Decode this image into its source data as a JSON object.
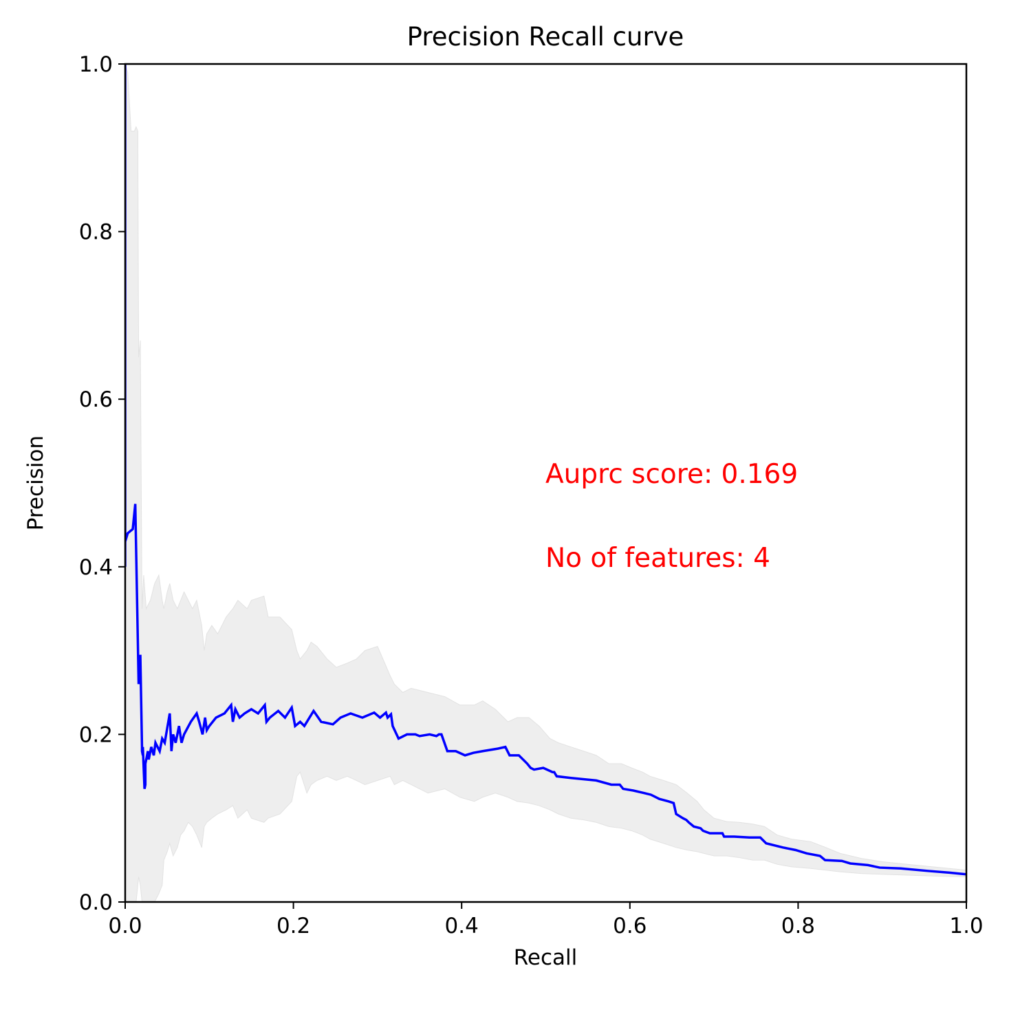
{
  "chart_data": {
    "type": "line",
    "title": "Precision Recall curve",
    "xlabel": "Recall",
    "ylabel": "Precision",
    "xlim": [
      0,
      1
    ],
    "ylim": [
      0,
      1
    ],
    "xticks": [
      "0.0",
      "0.2",
      "0.4",
      "0.6",
      "0.8",
      "1.0"
    ],
    "yticks": [
      "0.0",
      "0.2",
      "0.4",
      "0.6",
      "0.8",
      "1.0"
    ],
    "grid": false,
    "colors": {
      "line": "#0000ff",
      "band": "#eeeeee",
      "band_edge": "#e2e2e2",
      "annotation": "#ff0000"
    },
    "annotations": [
      "Auprc score: 0.169",
      "No of features: 4"
    ],
    "series": [
      {
        "x": [
          0.0,
          0.0,
          0.0,
          0.003,
          0.009,
          0.012,
          0.016,
          0.016,
          0.018,
          0.018,
          0.02,
          0.02,
          0.021,
          0.021,
          0.023,
          0.024,
          0.024,
          0.027,
          0.028,
          0.031,
          0.034,
          0.036,
          0.041,
          0.044,
          0.047,
          0.053,
          0.055,
          0.057,
          0.06,
          0.064,
          0.067,
          0.07,
          0.078,
          0.085,
          0.088,
          0.092,
          0.095,
          0.097,
          0.1,
          0.108,
          0.118,
          0.126,
          0.128,
          0.131,
          0.136,
          0.142,
          0.15,
          0.158,
          0.166,
          0.168,
          0.172,
          0.182,
          0.19,
          0.198,
          0.202,
          0.208,
          0.211,
          0.213,
          0.224,
          0.233,
          0.238,
          0.247,
          0.256,
          0.268,
          0.282,
          0.296,
          0.303,
          0.31,
          0.312,
          0.316,
          0.318,
          0.325,
          0.335,
          0.345,
          0.35,
          0.362,
          0.37,
          0.373,
          0.376,
          0.383,
          0.393,
          0.404,
          0.414,
          0.425,
          0.443,
          0.452,
          0.457,
          0.468,
          0.478,
          0.482,
          0.486,
          0.497,
          0.508,
          0.51,
          0.513,
          0.53,
          0.56,
          0.578,
          0.588,
          0.592,
          0.604,
          0.617,
          0.625,
          0.635,
          0.646,
          0.652,
          0.655,
          0.663,
          0.667,
          0.67,
          0.676,
          0.684,
          0.687,
          0.695,
          0.71,
          0.712,
          0.724,
          0.742,
          0.755,
          0.762,
          0.782,
          0.797,
          0.81,
          0.826,
          0.832,
          0.852,
          0.862,
          0.883,
          0.897,
          0.922,
          0.955,
          0.98,
          1.0
        ],
        "y": [
          0.4,
          1.0,
          0.43,
          0.44,
          0.445,
          0.475,
          0.26,
          0.28,
          0.26,
          0.295,
          0.185,
          0.18,
          0.175,
          0.185,
          0.135,
          0.14,
          0.165,
          0.18,
          0.17,
          0.185,
          0.175,
          0.19,
          0.18,
          0.195,
          0.19,
          0.225,
          0.18,
          0.2,
          0.19,
          0.21,
          0.19,
          0.2,
          0.215,
          0.225,
          0.215,
          0.2,
          0.22,
          0.205,
          0.21,
          0.22,
          0.225,
          0.235,
          0.215,
          0.23,
          0.22,
          0.225,
          0.23,
          0.225,
          0.235,
          0.215,
          0.22,
          0.228,
          0.22,
          0.232,
          0.21,
          0.215,
          0.212,
          0.21,
          0.228,
          0.215,
          0.214,
          0.212,
          0.22,
          0.225,
          0.22,
          0.226,
          0.22,
          0.226,
          0.22,
          0.224,
          0.21,
          0.195,
          0.2,
          0.2,
          0.198,
          0.2,
          0.198,
          0.2,
          0.2,
          0.18,
          0.18,
          0.175,
          0.178,
          0.18,
          0.183,
          0.185,
          0.175,
          0.175,
          0.165,
          0.16,
          0.158,
          0.16,
          0.155,
          0.155,
          0.15,
          0.148,
          0.145,
          0.14,
          0.14,
          0.135,
          0.133,
          0.13,
          0.128,
          0.123,
          0.12,
          0.118,
          0.105,
          0.1,
          0.098,
          0.095,
          0.09,
          0.088,
          0.085,
          0.082,
          0.082,
          0.078,
          0.078,
          0.077,
          0.077,
          0.07,
          0.065,
          0.062,
          0.058,
          0.055,
          0.05,
          0.049,
          0.046,
          0.044,
          0.041,
          0.04,
          0.037,
          0.035,
          0.033
        ]
      }
    ],
    "band": {
      "x": [
        0.0,
        0.003,
        0.007,
        0.011,
        0.013,
        0.015,
        0.016,
        0.018,
        0.02,
        0.022,
        0.025,
        0.03,
        0.035,
        0.04,
        0.044,
        0.046,
        0.05,
        0.053,
        0.057,
        0.062,
        0.066,
        0.07,
        0.075,
        0.08,
        0.085,
        0.091,
        0.094,
        0.097,
        0.103,
        0.11,
        0.12,
        0.128,
        0.134,
        0.145,
        0.15,
        0.165,
        0.17,
        0.184,
        0.198,
        0.204,
        0.208,
        0.216,
        0.221,
        0.228,
        0.24,
        0.251,
        0.264,
        0.275,
        0.285,
        0.3,
        0.315,
        0.32,
        0.33,
        0.34,
        0.36,
        0.38,
        0.398,
        0.415,
        0.425,
        0.44,
        0.455,
        0.466,
        0.48,
        0.492,
        0.505,
        0.515,
        0.53,
        0.545,
        0.56,
        0.575,
        0.59,
        0.602,
        0.615,
        0.624,
        0.64,
        0.655,
        0.668,
        0.68,
        0.688,
        0.7,
        0.715,
        0.73,
        0.746,
        0.76,
        0.775,
        0.792,
        0.815,
        0.833,
        0.85,
        0.875,
        0.9,
        0.93,
        0.96,
        1.0
      ],
      "upper": [
        1.0,
        0.99,
        0.92,
        0.92,
        0.925,
        0.92,
        0.65,
        0.67,
        0.35,
        0.39,
        0.35,
        0.36,
        0.38,
        0.39,
        0.36,
        0.35,
        0.37,
        0.38,
        0.36,
        0.35,
        0.36,
        0.37,
        0.36,
        0.35,
        0.36,
        0.33,
        0.3,
        0.32,
        0.33,
        0.32,
        0.34,
        0.35,
        0.36,
        0.35,
        0.36,
        0.365,
        0.34,
        0.34,
        0.325,
        0.3,
        0.29,
        0.3,
        0.31,
        0.305,
        0.29,
        0.28,
        0.285,
        0.29,
        0.3,
        0.305,
        0.27,
        0.26,
        0.25,
        0.255,
        0.25,
        0.245,
        0.235,
        0.235,
        0.24,
        0.23,
        0.215,
        0.22,
        0.22,
        0.21,
        0.195,
        0.19,
        0.185,
        0.18,
        0.175,
        0.165,
        0.165,
        0.16,
        0.155,
        0.15,
        0.145,
        0.14,
        0.13,
        0.12,
        0.11,
        0.1,
        0.096,
        0.095,
        0.093,
        0.09,
        0.08,
        0.075,
        0.072,
        0.065,
        0.058,
        0.052,
        0.048,
        0.045,
        0.042,
        0.038
      ],
      "lower": [
        0.0,
        0.0,
        0.0,
        0.0,
        0.0,
        0.02,
        0.03,
        0.02,
        0.0,
        0.0,
        0.0,
        0.0,
        0.0,
        0.01,
        0.02,
        0.05,
        0.06,
        0.07,
        0.055,
        0.065,
        0.08,
        0.085,
        0.095,
        0.09,
        0.08,
        0.065,
        0.09,
        0.095,
        0.1,
        0.105,
        0.11,
        0.115,
        0.1,
        0.11,
        0.1,
        0.095,
        0.1,
        0.105,
        0.12,
        0.15,
        0.155,
        0.13,
        0.14,
        0.145,
        0.15,
        0.145,
        0.15,
        0.145,
        0.14,
        0.145,
        0.15,
        0.14,
        0.145,
        0.14,
        0.13,
        0.135,
        0.125,
        0.12,
        0.125,
        0.13,
        0.125,
        0.12,
        0.118,
        0.115,
        0.11,
        0.105,
        0.1,
        0.098,
        0.095,
        0.09,
        0.088,
        0.085,
        0.08,
        0.075,
        0.07,
        0.065,
        0.062,
        0.06,
        0.058,
        0.055,
        0.055,
        0.053,
        0.05,
        0.05,
        0.045,
        0.042,
        0.04,
        0.038,
        0.036,
        0.034,
        0.033,
        0.032,
        0.031,
        0.03
      ]
    }
  }
}
